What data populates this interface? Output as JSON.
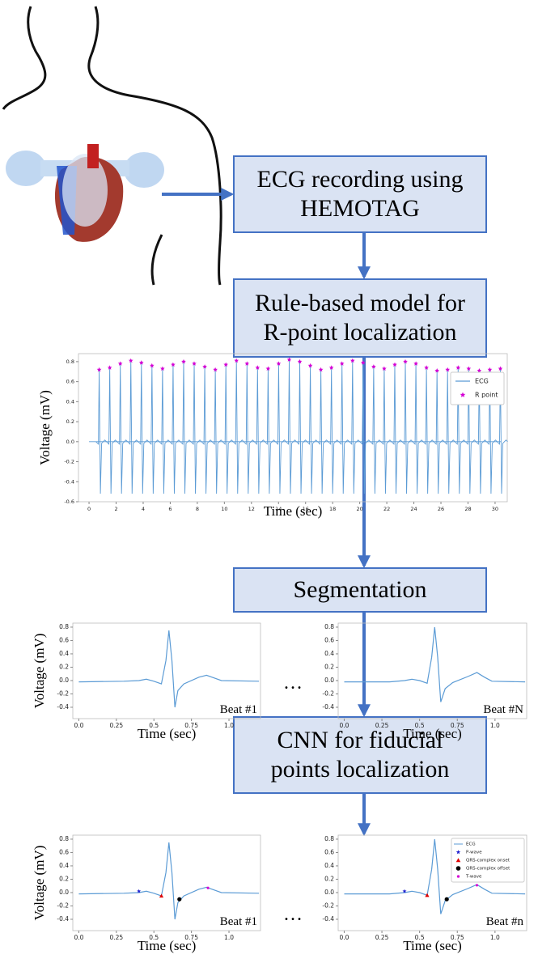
{
  "boxes": [
    {
      "lines": [
        "ECG recording using",
        "HEMOTAG"
      ]
    },
    {
      "lines": [
        "Rule-based model for",
        "R-point localization"
      ]
    },
    {
      "lines": [
        "Segmentation"
      ]
    },
    {
      "lines": [
        "CNN for fiducial",
        "points localization"
      ]
    }
  ],
  "ellipsis": [
    "…",
    "…"
  ],
  "plots": [
    {
      "kind": "long",
      "ylabel": "Voltage (mV)",
      "xlabel": "Time (sec)",
      "color": "#5b9bd5",
      "xlim": [
        -0.78,
        30.9
      ],
      "ylim": [
        -0.6,
        0.88
      ],
      "xticks": [
        0,
        2,
        4,
        6,
        8,
        10,
        12,
        14,
        16,
        18,
        20,
        22,
        24,
        26,
        28,
        30
      ],
      "yticks": [
        -0.6,
        -0.4,
        -0.2,
        {
          "value": 0,
          "label": "0.0"
        },
        0.2,
        0.4,
        0.6,
        0.8
      ],
      "trace_name": "ECG",
      "r_points": {
        "name": "R point",
        "color": "#d400d4",
        "x": [
          0.75,
          1.53,
          2.31,
          3.09,
          3.87,
          4.65,
          5.43,
          6.21,
          6.99,
          7.77,
          8.55,
          9.33,
          10.11,
          10.89,
          11.67,
          12.45,
          13.23,
          14.01,
          14.79,
          15.57,
          16.35,
          17.13,
          17.91,
          18.69,
          19.47,
          20.25,
          21.03,
          21.81,
          22.59,
          23.37,
          24.15,
          24.93,
          25.71,
          26.49,
          27.27,
          28.05,
          28.83,
          29.61,
          30.39
        ],
        "values": [
          0.72,
          0.74,
          0.78,
          0.81,
          0.79,
          0.76,
          0.73,
          0.77,
          0.8,
          0.78,
          0.75,
          0.72,
          0.77,
          0.81,
          0.78,
          0.74,
          0.73,
          0.78,
          0.82,
          0.8,
          0.76,
          0.72,
          0.74,
          0.78,
          0.81,
          0.79,
          0.75,
          0.73,
          0.77,
          0.8,
          0.78,
          0.74,
          0.71,
          0.72,
          0.74,
          0.73,
          0.71,
          0.72,
          0.73
        ]
      },
      "trough": -0.52
    },
    {
      "kind": "beat",
      "ylabel": "Voltage (mV)",
      "xlabel": "Time (sec)",
      "beat_label": "Beat #1",
      "color": "#5b9bd5",
      "xlim": [
        -0.04,
        1.21
      ],
      "ylim": [
        -0.57,
        0.86
      ],
      "xticks": [
        {
          "value": 0,
          "label": "0.0"
        },
        0.25,
        0.5,
        0.75,
        {
          "value": 1,
          "label": "1.0"
        }
      ],
      "yticks": [
        -0.4,
        -0.2,
        {
          "value": 0,
          "label": "0.0"
        },
        0.2,
        0.4,
        0.6,
        0.8
      ],
      "trace": {
        "x": [
          0,
          0.3,
          0.4,
          0.45,
          0.5,
          0.55,
          0.58,
          0.6,
          0.62,
          0.64,
          0.66,
          0.7,
          0.8,
          0.85,
          0.9,
          0.95,
          1.2
        ],
        "values": [
          -0.02,
          -0.01,
          0,
          0.02,
          -0.01,
          -0.05,
          0.3,
          0.75,
          0.3,
          -0.4,
          -0.15,
          -0.05,
          0.05,
          0.08,
          0.04,
          0,
          -0.01
        ]
      }
    },
    {
      "kind": "beat",
      "xlabel": "Time (sec)",
      "beat_label": "Beat #N",
      "color": "#5b9bd5",
      "xlim": [
        -0.04,
        1.21
      ],
      "ylim": [
        -0.57,
        0.86
      ],
      "xticks": [
        {
          "value": 0,
          "label": "0.0"
        },
        0.25,
        0.5,
        0.75,
        {
          "value": 1,
          "label": "1.0"
        }
      ],
      "yticks": [
        -0.4,
        -0.2,
        {
          "value": 0,
          "label": "0.0"
        },
        0.2,
        0.4,
        0.6,
        0.8
      ],
      "trace": {
        "x": [
          0,
          0.3,
          0.4,
          0.45,
          0.5,
          0.55,
          0.58,
          0.6,
          0.62,
          0.64,
          0.67,
          0.72,
          0.82,
          0.88,
          0.93,
          0.98,
          1.2
        ],
        "values": [
          -0.02,
          -0.02,
          0,
          0.02,
          0,
          -0.04,
          0.35,
          0.8,
          0.35,
          -0.32,
          -0.12,
          -0.03,
          0.06,
          0.12,
          0.05,
          -0.01,
          -0.02
        ]
      }
    },
    {
      "kind": "beat",
      "ylabel": "Voltage (mV)",
      "xlabel": "Time (sec)",
      "beat_label": "Beat #1",
      "color": "#5b9bd5",
      "xlim": [
        -0.04,
        1.21
      ],
      "ylim": [
        -0.57,
        0.86
      ],
      "xticks": [
        {
          "value": 0,
          "label": "0.0"
        },
        0.25,
        0.5,
        0.75,
        {
          "value": 1,
          "label": "1.0"
        }
      ],
      "yticks": [
        -0.4,
        -0.2,
        {
          "value": 0,
          "label": "0.0"
        },
        0.2,
        0.4,
        0.6,
        0.8
      ],
      "trace": {
        "x": [
          0,
          0.3,
          0.4,
          0.45,
          0.5,
          0.55,
          0.58,
          0.6,
          0.62,
          0.64,
          0.66,
          0.7,
          0.8,
          0.85,
          0.9,
          0.95,
          1.2
        ],
        "values": [
          -0.02,
          -0.01,
          0,
          0.02,
          -0.01,
          -0.05,
          0.3,
          0.75,
          0.3,
          -0.4,
          -0.15,
          -0.05,
          0.05,
          0.08,
          0.04,
          0,
          -0.01
        ]
      },
      "markers": [
        {
          "shape": "star",
          "color": "#1f1fd0",
          "x": 0.4,
          "value": 0.02
        },
        {
          "shape": "triangle",
          "color": "#e00000",
          "x": 0.55,
          "value": -0.05
        },
        {
          "shape": "circle",
          "color": "#000000",
          "x": 0.67,
          "value": -0.1
        },
        {
          "shape": "dot",
          "color": "#d400d4",
          "x": 0.86,
          "value": 0.07
        }
      ]
    },
    {
      "kind": "beat",
      "xlabel": "Time (sec)",
      "beat_label": "Beat #n",
      "color": "#5b9bd5",
      "xlim": [
        -0.04,
        1.21
      ],
      "ylim": [
        -0.57,
        0.86
      ],
      "xticks": [
        {
          "value": 0,
          "label": "0.0"
        },
        0.25,
        0.5,
        0.75,
        {
          "value": 1,
          "label": "1.0"
        }
      ],
      "yticks": [
        -0.4,
        -0.2,
        {
          "value": 0,
          "label": "0.0"
        },
        0.2,
        0.4,
        0.6,
        0.8
      ],
      "trace_name": "ECG",
      "trace": {
        "x": [
          0,
          0.3,
          0.4,
          0.45,
          0.5,
          0.55,
          0.58,
          0.6,
          0.62,
          0.64,
          0.67,
          0.72,
          0.82,
          0.88,
          0.93,
          0.98,
          1.2
        ],
        "values": [
          -0.02,
          -0.02,
          0,
          0.02,
          0,
          -0.04,
          0.35,
          0.8,
          0.35,
          -0.32,
          -0.12,
          -0.03,
          0.06,
          0.12,
          0.05,
          -0.01,
          -0.02
        ]
      },
      "markers": [
        {
          "name": "P-wave",
          "shape": "star",
          "color": "#1f1fd0",
          "x": 0.4,
          "value": 0.02
        },
        {
          "name": "QRS-complex onset",
          "shape": "triangle",
          "color": "#e00000",
          "x": 0.55,
          "value": -0.04
        },
        {
          "name": "QRS-complex offset",
          "shape": "circle",
          "color": "#000000",
          "x": 0.68,
          "value": -0.1
        },
        {
          "name": "T-wave",
          "shape": "dot",
          "color": "#d400d4",
          "x": 0.88,
          "value": 0.11
        }
      ]
    }
  ]
}
